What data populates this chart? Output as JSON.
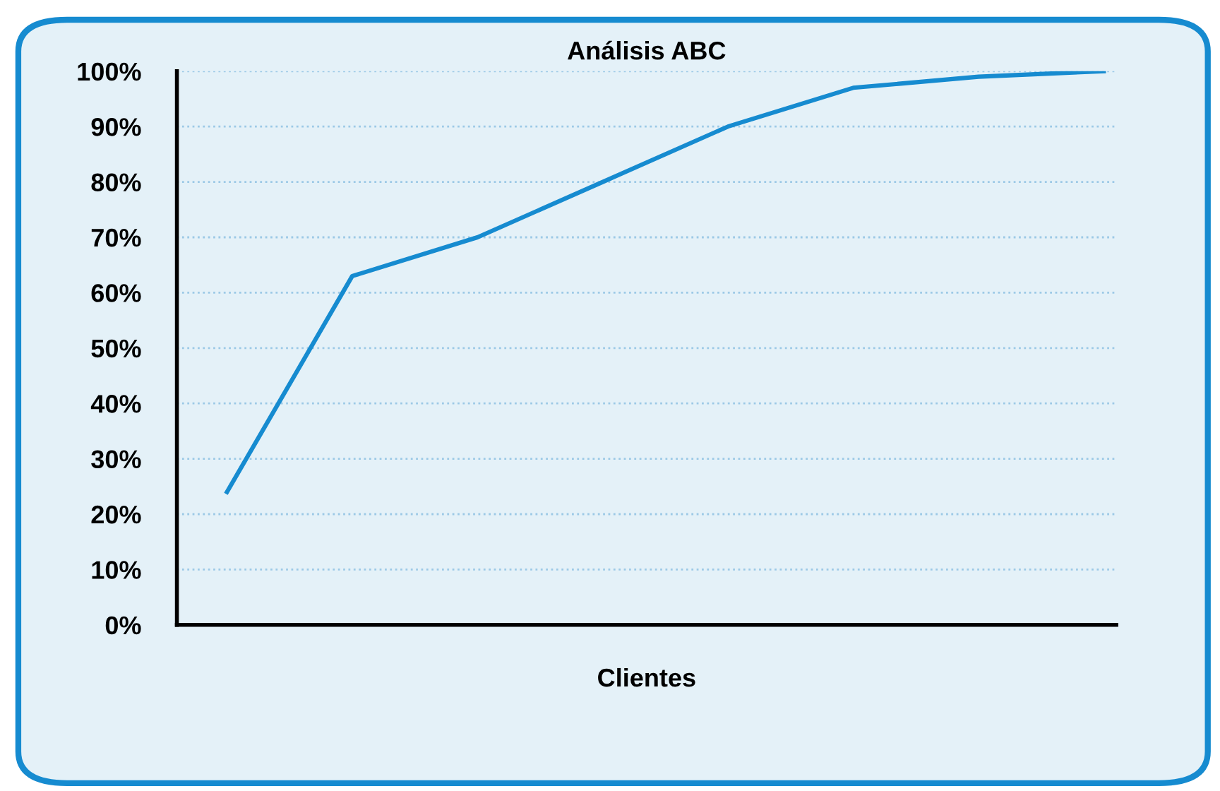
{
  "chart_data": {
    "type": "line",
    "title": "Análisis ABC",
    "xlabel": "Clientes",
    "categories": [
      null,
      null,
      null,
      null,
      null,
      null,
      null,
      null
    ],
    "series": [
      {
        "color": "#168bd0",
        "values": [
          24,
          63,
          70,
          80,
          90,
          97,
          99,
          100
        ]
      }
    ],
    "ylim": [
      0,
      100
    ],
    "yticks": [
      {
        "value": 0,
        "label": "0%"
      },
      {
        "value": 10,
        "label": "10%"
      },
      {
        "value": 20,
        "label": "20%"
      },
      {
        "value": 30,
        "label": "30%"
      },
      {
        "value": 40,
        "label": "40%"
      },
      {
        "value": 50,
        "label": "50%"
      },
      {
        "value": 60,
        "label": "60%"
      },
      {
        "value": 70,
        "label": "70%"
      },
      {
        "value": 80,
        "label": "80%"
      },
      {
        "value": 90,
        "label": "90%"
      },
      {
        "value": 100,
        "label": "100%"
      }
    ],
    "grid": "y",
    "tick_labels": "y",
    "marker": "none",
    "line_style": "solid"
  }
}
